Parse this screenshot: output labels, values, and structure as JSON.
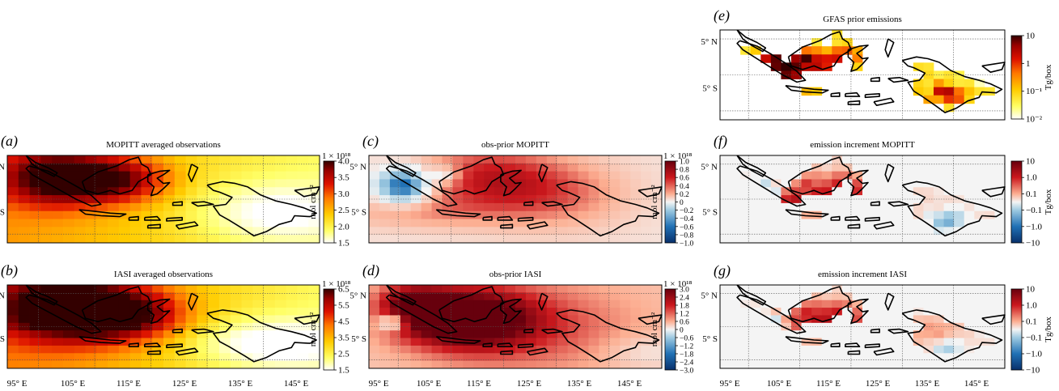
{
  "figure": {
    "lat_ticks": [
      "5° N",
      "5° S"
    ],
    "lon_ticks": [
      "95° E",
      "105° E",
      "115° E",
      "125° E",
      "135° E",
      "145° E"
    ],
    "colors": {
      "frame": "#000000",
      "grid": "#555555",
      "coast": "#000000",
      "sequential": [
        "#ffffff",
        "#ffff66",
        "#ffcc00",
        "#ff7700",
        "#dd1100",
        "#990000",
        "#330000"
      ],
      "diverging": [
        "#08306b",
        "#2171b5",
        "#9ecae1",
        "#f4f4f4",
        "#fcae91",
        "#cb181d",
        "#67000d"
      ]
    }
  },
  "panels": {
    "a": {
      "letter": "(a)",
      "title": "MOPITT averaged observations",
      "exponent": "1 × 10¹⁸",
      "unit": "mol cm⁻²",
      "ticks": [
        "4.0",
        "3.5",
        "3.0",
        "2.5",
        "2.0",
        "1.5"
      ]
    },
    "b": {
      "letter": "(b)",
      "title": "IASI averaged observations",
      "exponent": "1 × 10¹⁸",
      "unit": "mol cm⁻²",
      "ticks": [
        "6.5",
        "5.5",
        "4.5",
        "3.5",
        "2.5",
        "1.5"
      ]
    },
    "c": {
      "letter": "(c)",
      "title": "obs-prior MOPITT",
      "exponent": "1 × 10¹⁸",
      "unit": "mol cm⁻²",
      "ticks": [
        "1.0",
        "0.8",
        "0.6",
        "0.4",
        "0.2",
        "0",
        "−0.2",
        "−0.4",
        "−0.6",
        "−0.8",
        "−1.0"
      ]
    },
    "d": {
      "letter": "(d)",
      "title": "obs-prior IASI",
      "exponent": "1 × 10¹⁸",
      "unit": "mol cm⁻²",
      "ticks": [
        "3.0",
        "2.4",
        "1.8",
        "1.2",
        "0.6",
        "0",
        "−0.6",
        "−1.2",
        "−1.8",
        "−2.4",
        "−3.0"
      ]
    },
    "e": {
      "letter": "(e)",
      "title": "GFAS prior emissions",
      "unit": "Tg/box",
      "ticks": [
        "10",
        "1",
        "10⁻¹",
        "10⁻²"
      ]
    },
    "f": {
      "letter": "(f)",
      "title": "emission increment MOPITT",
      "unit": "Tg/box",
      "ticks": [
        "10",
        "1.0",
        "0.1",
        "−0.1",
        "−1.0",
        "−10"
      ]
    },
    "g": {
      "letter": "(g)",
      "title": "emission increment IASI",
      "unit": "Tg/box",
      "ticks": [
        "10",
        "1.0",
        "0.1",
        "−0.1",
        "−1.0",
        "−10"
      ]
    }
  },
  "chart_data": [
    {
      "type": "heatmap",
      "panel": "a",
      "title": "MOPITT averaged observations",
      "colorbar_label": "mol cm⁻²",
      "colorbar_range": [
        1.5,
        4.0
      ],
      "scale_factor": "1 × 10¹⁸",
      "lon_range": [
        95,
        150
      ],
      "lat_range": [
        -10,
        8
      ]
    },
    {
      "type": "heatmap",
      "panel": "b",
      "title": "IASI averaged observations",
      "colorbar_label": "mol cm⁻²",
      "colorbar_range": [
        1.5,
        6.5
      ],
      "scale_factor": "1 × 10¹⁸",
      "lon_range": [
        95,
        150
      ],
      "lat_range": [
        -10,
        8
      ]
    },
    {
      "type": "heatmap",
      "panel": "c",
      "title": "obs-prior MOPITT",
      "colorbar_label": "mol cm⁻²",
      "colorbar_range": [
        -1.0,
        1.0
      ],
      "scale_factor": "1 × 10¹⁸",
      "lon_range": [
        95,
        150
      ],
      "lat_range": [
        -10,
        8
      ]
    },
    {
      "type": "heatmap",
      "panel": "d",
      "title": "obs-prior IASI",
      "colorbar_label": "mol cm⁻²",
      "colorbar_range": [
        -3.0,
        3.0
      ],
      "scale_factor": "1 × 10¹⁸",
      "lon_range": [
        95,
        150
      ],
      "lat_range": [
        -10,
        8
      ]
    },
    {
      "type": "heatmap",
      "panel": "e",
      "title": "GFAS prior emissions",
      "colorbar_label": "Tg/box",
      "colorbar_range": [
        0.01,
        10
      ],
      "colorbar_scale": "log",
      "lon_range": [
        95,
        150
      ],
      "lat_range": [
        -10,
        8
      ]
    },
    {
      "type": "heatmap",
      "panel": "f",
      "title": "emission increment MOPITT",
      "colorbar_label": "Tg/box",
      "colorbar_range": [
        -10,
        10
      ],
      "colorbar_scale": "symlog",
      "lon_range": [
        95,
        150
      ],
      "lat_range": [
        -10,
        8
      ]
    },
    {
      "type": "heatmap",
      "panel": "g",
      "title": "emission increment IASI",
      "colorbar_label": "Tg/box",
      "colorbar_range": [
        -10,
        10
      ],
      "colorbar_scale": "symlog",
      "lon_range": [
        95,
        150
      ],
      "lat_range": [
        -10,
        8
      ]
    }
  ]
}
